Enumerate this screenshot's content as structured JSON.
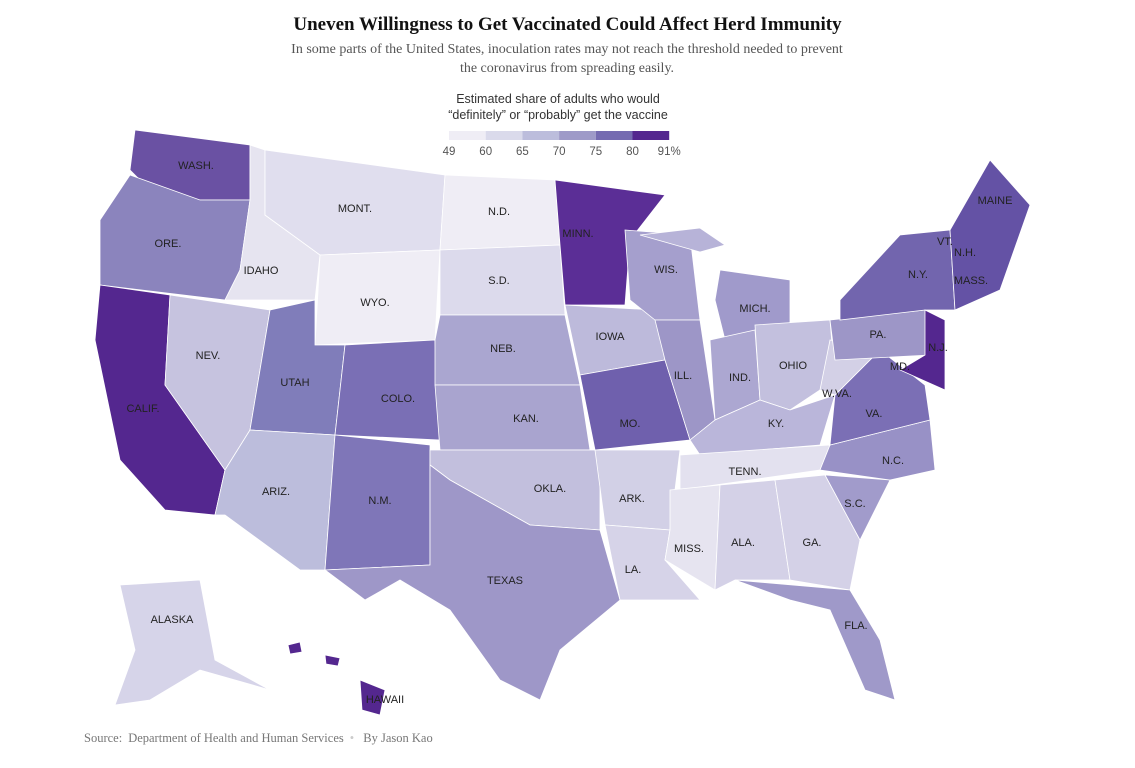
{
  "header": {
    "title": "Uneven Willingness to Get Vaccinated Could Affect Herd Immunity",
    "subtitle": "In some parts of the United States, inoculation rates may not reach the threshold needed to prevent the coronavirus from spreading easily."
  },
  "legend": {
    "title": [
      "Estimated share of adults who would",
      "“definitely” or “probably” get the vaccine"
    ],
    "colors": [
      "#efedf5",
      "#dadaeb",
      "#bcbddc",
      "#9e9ac8",
      "#756bb1",
      "#54278f"
    ],
    "ticks": [
      49,
      60,
      65,
      70,
      75,
      80,
      {
        "value": 91,
        "label": "91%"
      }
    ]
  },
  "map": {
    "labels": [
      "WASH.",
      "ORE.",
      "CALIF.",
      "NEV.",
      "IDAHO",
      "MONT.",
      "WYO.",
      "UTAH",
      "COLO.",
      "ARIZ.",
      "N.M.",
      "N.D.",
      "S.D.",
      "NEB.",
      "KAN.",
      "OKLA.",
      "TEXAS",
      "MINN.",
      "IOWA",
      "MO.",
      "ARK.",
      "LA.",
      "WIS.",
      "ILL.",
      "MICH.",
      "IND.",
      "OHIO",
      "KY.",
      "TENN.",
      "MISS.",
      "ALA.",
      "GA.",
      "FLA.",
      "S.C.",
      "N.C.",
      "VA.",
      "W.VA.",
      "PA.",
      "N.Y.",
      "MAINE",
      "N.H.",
      "VT.",
      "MASS.",
      "N.J.",
      "MD.",
      "ALASKA",
      "HAWAII"
    ]
  },
  "footer": {
    "source_label": "Source:",
    "source": "Department of Health and Human Services",
    "byline": "By Jason Kao"
  }
}
